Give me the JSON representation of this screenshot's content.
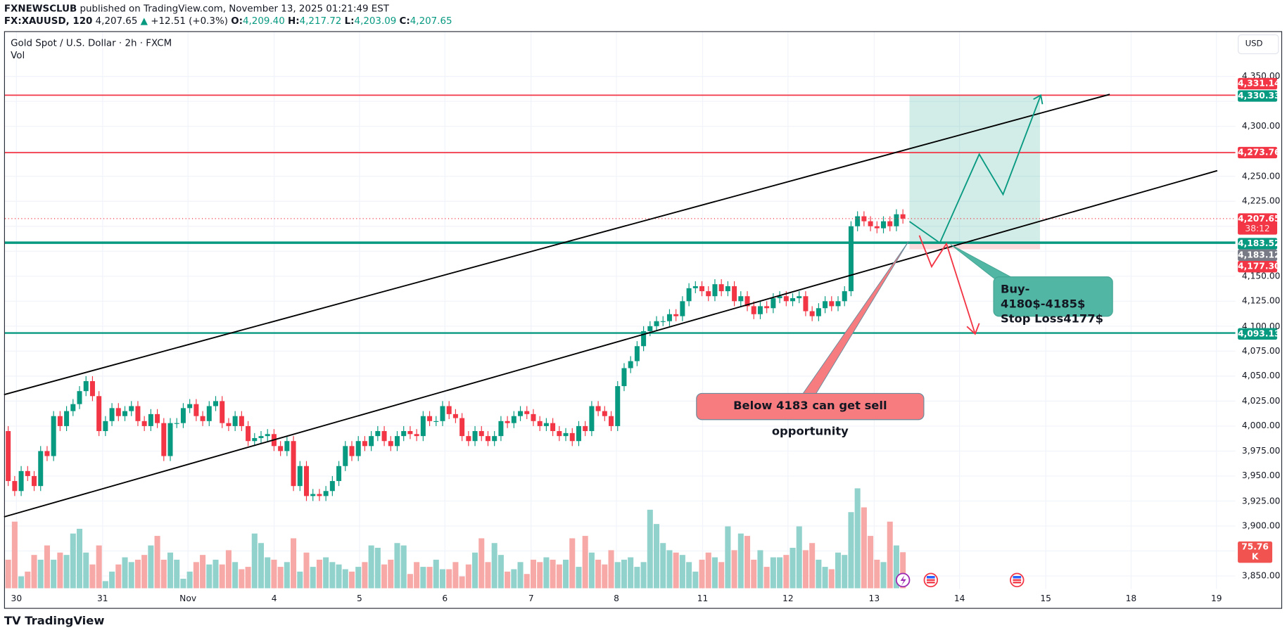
{
  "header": {
    "author": "FXNEWSCLUB",
    "published": "published on TradingView.com, November 13, 2025 01:21:49 EST",
    "symbol": "FX:XAUUSD, 120",
    "last": "4,207.65",
    "change": "+12.51 (+0.3%)",
    "o_label": "O:",
    "o": "4,209.40",
    "h_label": "H:",
    "h": "4,217.72",
    "l_label": "L:",
    "l": "4,203.09",
    "c_label": "C:",
    "c": "4,207.65"
  },
  "legend": {
    "title": "Gold Spot / U.S. Dollar · 2h · FXCM",
    "vol": "Vol"
  },
  "currency_button": "USD",
  "colors": {
    "up": "#089981",
    "down": "#f23645",
    "vol_up": "#92d2cc",
    "vol_down": "#f7a9a7",
    "level_red": "#f23645",
    "level_green": "#089981",
    "channel": "#000000"
  },
  "price_axis": {
    "ticks": [
      {
        "price": 4350,
        "label": "4,350.00"
      },
      {
        "price": 4300,
        "label": "4,300.00"
      },
      {
        "price": 4250,
        "label": "4,250.00"
      },
      {
        "price": 4225,
        "label": "4,225.00"
      },
      {
        "price": 4150,
        "label": "4,150.00"
      },
      {
        "price": 4125,
        "label": "4,125.00"
      },
      {
        "price": 4100,
        "label": "4,100.00"
      },
      {
        "price": 4075,
        "label": "4,075.00"
      },
      {
        "price": 4050,
        "label": "4,050.00"
      },
      {
        "price": 4025,
        "label": "4,025.00"
      },
      {
        "price": 4000,
        "label": "4,000.00"
      },
      {
        "price": 3975,
        "label": "3,975.00"
      },
      {
        "price": 3950,
        "label": "3,950.00"
      },
      {
        "price": 3925,
        "label": "3,925.00"
      },
      {
        "price": 3900,
        "label": "3,900.00"
      },
      {
        "price": 3850,
        "label": "3,850.00"
      }
    ],
    "tags": [
      {
        "price": 4331.14,
        "label": "4,331.14",
        "color": "#f23645"
      },
      {
        "price": 4330.33,
        "label": "4,330.33",
        "color": "#089981"
      },
      {
        "price": 4273.76,
        "label": "4,273.76",
        "color": "#f23645"
      },
      {
        "price": 4207.65,
        "label": "4,207.65",
        "sub": "38:12",
        "color": "#f23645"
      },
      {
        "price": 4183.52,
        "label": "4,183.52",
        "color": "#089981"
      },
      {
        "price": 4183.12,
        "label": "4,183.12",
        "color": "#787b86"
      },
      {
        "price": 4177.3,
        "label": "4,177.30",
        "color": "#f23645"
      },
      {
        "price": 4093.13,
        "label": "4,093.13",
        "color": "#089981"
      }
    ],
    "volume_tag": {
      "label": "75.76 K",
      "color": "#f05350"
    }
  },
  "time_axis": [
    "30",
    "31",
    "Nov",
    "4",
    "5",
    "6",
    "7",
    "8",
    "11",
    "12",
    "13",
    "14",
    "15",
    "18",
    "19"
  ],
  "chart_data": {
    "type": "candlestick",
    "symbol": "FX:XAUUSD",
    "interval": "2h",
    "first_open": 3995,
    "close": [
      3945,
      3935,
      3955,
      3950,
      3940,
      3975,
      3970,
      4010,
      4000,
      4015,
      4022,
      4035,
      4045,
      4030,
      3995,
      4005,
      4018,
      4010,
      4015,
      4020,
      4005,
      4000,
      4012,
      4003,
      3970,
      4003,
      4003,
      4018,
      4022,
      4010,
      4005,
      4020,
      4025,
      4003,
      4000,
      4010,
      4000,
      3985,
      3988,
      3990,
      3992,
      3980,
      3975,
      3985,
      3940,
      3960,
      3930,
      3932,
      3930,
      3935,
      3945,
      3960,
      3980,
      3970,
      3985,
      3980,
      3990,
      3995,
      3985,
      3980,
      3990,
      3995,
      3992,
      3990,
      4010,
      4005,
      4005,
      4020,
      4012,
      4008,
      3990,
      3985,
      3995,
      3990,
      3985,
      3990,
      4005,
      4003,
      4010,
      4015,
      4012,
      4005,
      4000,
      4003,
      3995,
      3990,
      3993,
      3985,
      4000,
      3995,
      4020,
      4015,
      4010,
      4000,
      4040,
      4058,
      4065,
      4080,
      4095,
      4100,
      4105,
      4105,
      4112,
      4110,
      4125,
      4138,
      4140,
      4135,
      4130,
      4142,
      4135,
      4140,
      4125,
      4130,
      4120,
      4112,
      4120,
      4118,
      4128,
      4130,
      4125,
      4128,
      4130,
      4115,
      4110,
      4118,
      4125,
      4120,
      4125,
      4135,
      4200,
      4210,
      4205,
      4200,
      4198,
      4205,
      4200,
      4212,
      4207.65
    ],
    "volume_k": [
      60,
      140,
      25,
      35,
      70,
      60,
      90,
      60,
      75,
      70,
      115,
      125,
      75,
      50,
      90,
      15,
      35,
      50,
      65,
      55,
      60,
      70,
      90,
      110,
      60,
      75,
      60,
      20,
      35,
      55,
      70,
      50,
      60,
      50,
      80,
      55,
      40,
      45,
      115,
      95,
      65,
      60,
      45,
      55,
      105,
      35,
      75,
      45,
      60,
      65,
      55,
      50,
      40,
      35,
      45,
      55,
      90,
      85,
      50,
      60,
      95,
      90,
      30,
      55,
      45,
      45,
      60,
      40,
      40,
      55,
      25,
      50,
      75,
      105,
      55,
      95,
      70,
      35,
      40,
      55,
      30,
      60,
      55,
      65,
      60,
      50,
      60,
      105,
      45,
      110,
      75,
      60,
      50,
      80,
      55,
      60,
      65,
      45,
      55,
      165,
      135,
      95,
      80,
      75,
      70,
      55,
      35,
      60,
      75,
      65,
      55,
      130,
      80,
      115,
      110,
      60,
      80,
      45,
      65,
      65,
      70,
      85,
      130,
      80,
      95,
      60,
      45,
      40,
      75,
      70,
      160,
      210,
      170,
      110,
      60,
      55,
      140,
      90,
      75.76
    ],
    "ylim": [
      3825,
      4370
    ],
    "levels": [
      4331.14,
      4273.76,
      4183.52,
      4093.13
    ]
  },
  "annotations": {
    "sell_note": "Below 4183 can get sell opportunity",
    "buy_line1": "Buy-4180$-4185$",
    "buy_line2": "Stop Loss4177$"
  },
  "footer": {
    "logo": "TradingView"
  }
}
